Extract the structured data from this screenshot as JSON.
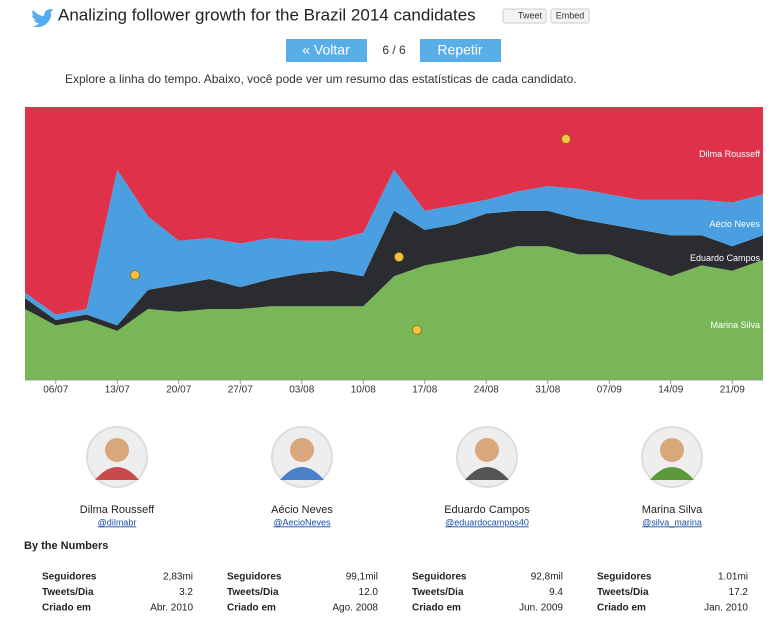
{
  "header": {
    "title": "Analizing follower growth for the Brazil 2014 candidates",
    "tweet": "Tweet",
    "embed": "Embed"
  },
  "nav": {
    "back": "« Voltar",
    "counter": "6 / 6",
    "replay": "Repetir"
  },
  "description": "Explore a linha do tempo. Abaixo, você pode ver um resumo das estatísticas de cada candidato.",
  "chart_data": {
    "type": "stacked_area",
    "categories": [
      null,
      "06/07",
      null,
      "13/07",
      null,
      "20/07",
      null,
      "27/07",
      null,
      "03/08",
      null,
      "10/08",
      null,
      "17/08",
      null,
      "24/08",
      null,
      "31/08",
      null,
      "07/09",
      null,
      "14/09",
      null,
      "21/09",
      null
    ],
    "ylim": [
      0,
      100
    ],
    "series": [
      {
        "name": "Marina Silva",
        "color": "#78b657",
        "values": [
          26,
          20,
          22,
          18,
          26,
          25,
          26,
          26,
          27,
          27,
          27,
          27,
          38,
          42,
          44,
          46,
          49,
          49,
          46,
          46,
          42,
          38,
          42,
          40,
          44
        ]
      },
      {
        "name": "Eduardo Campos",
        "color": "#2b2c30",
        "values": [
          4,
          2,
          2,
          2,
          7,
          10,
          11,
          8,
          10,
          12,
          13,
          11,
          24,
          13,
          13,
          15,
          13,
          13,
          13,
          11,
          13,
          15,
          11,
          9,
          9
        ]
      },
      {
        "name": "Aécio Neves",
        "color": "#4a9fe0",
        "values": [
          2,
          2,
          2,
          57,
          27,
          16,
          15,
          16,
          15,
          12,
          11,
          16,
          15,
          7,
          7,
          5,
          7,
          9,
          11,
          11,
          11,
          13,
          13,
          16,
          15
        ]
      },
      {
        "name": "Dilma Rousseff",
        "color": "#e0314a",
        "values": [
          68,
          76,
          74,
          23,
          40,
          49,
          48,
          50,
          48,
          49,
          49,
          46,
          23,
          38,
          36,
          34,
          31,
          29,
          30,
          32,
          34,
          34,
          34,
          35,
          32
        ]
      }
    ]
  },
  "candidates": [
    {
      "name": "Dilma Rousseff",
      "handle": "@dilmabr"
    },
    {
      "name": "Aécio Neves",
      "handle": "@AecioNeves"
    },
    {
      "name": "Eduardo Campos",
      "handle": "@eduardocampos40"
    },
    {
      "name": "Marina Silva",
      "handle": "@silva_marina"
    }
  ],
  "stats": {
    "title": "By the Numbers",
    "labels": [
      "Seguidores",
      "Tweets/Dia",
      "Criado em"
    ],
    "columns": [
      [
        "2,83mi",
        "3.2",
        "Abr. 2010"
      ],
      [
        "99,1mil",
        "12.0",
        "Ago. 2008"
      ],
      [
        "92,8mil",
        "9.4",
        "Jun. 2009"
      ],
      [
        "1.01mi",
        "17.2",
        "Jan. 2010"
      ]
    ]
  }
}
